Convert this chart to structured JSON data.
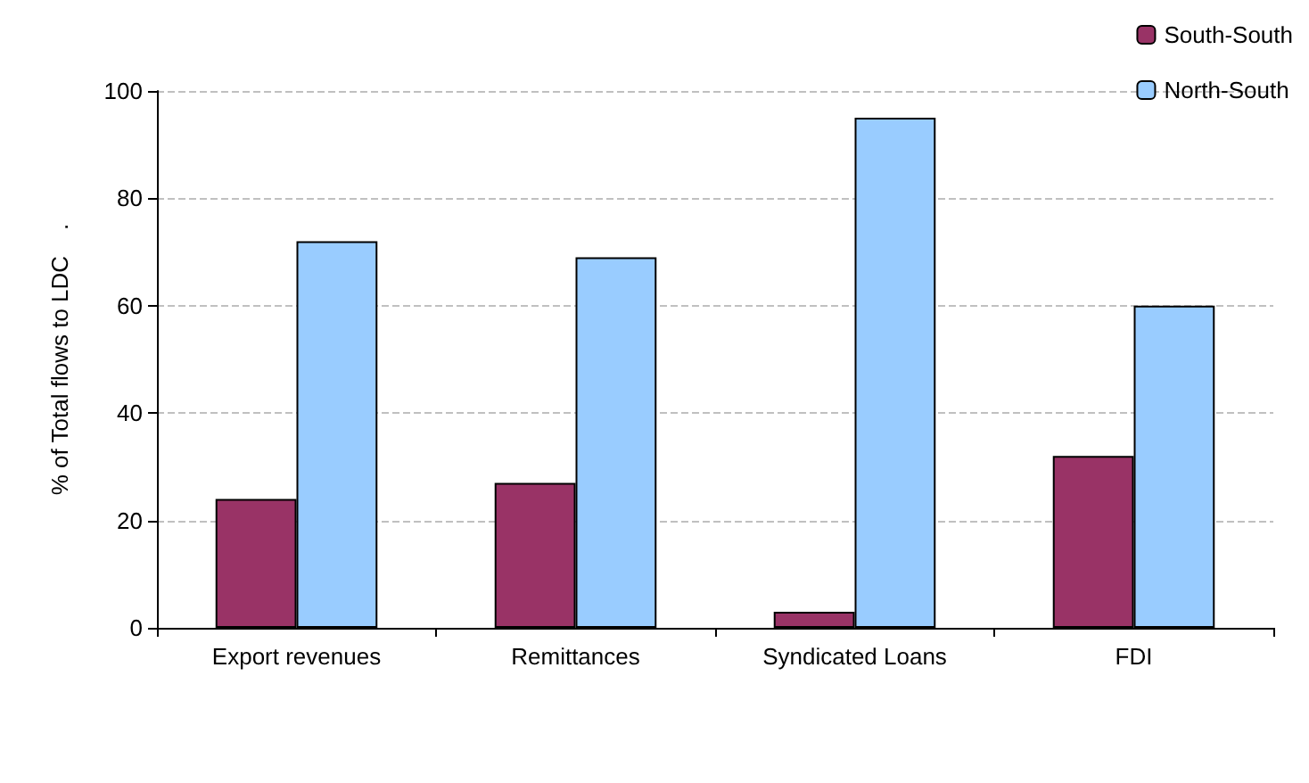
{
  "chart_data": {
    "type": "bar",
    "ylabel": "% of Total flows to LDC    .",
    "categories": [
      "Export revenues",
      "Remittances",
      "Syndicated Loans",
      "FDI"
    ],
    "series": [
      {
        "name": "South-South",
        "color": "#993366",
        "values": [
          24,
          27,
          3,
          32
        ]
      },
      {
        "name": "North-South",
        "color": "#99ccff",
        "values": [
          72,
          69,
          95,
          60
        ]
      }
    ],
    "ylim": [
      0,
      100
    ],
    "yticks": [
      0,
      20,
      40,
      60,
      80,
      100
    ],
    "grid": "y",
    "legend": "top right"
  }
}
